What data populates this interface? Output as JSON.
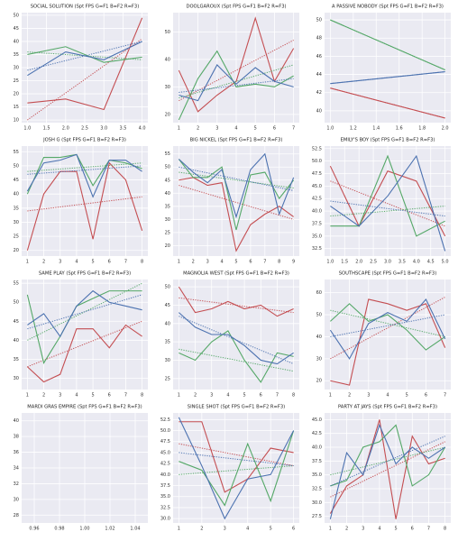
{
  "chart_data": [
    {
      "type": "line",
      "title": "SOCIAL SOLUTION (Spt FPS G=F1 B=F2 R=F3)",
      "grid": true,
      "x": [
        1,
        2,
        3,
        4
      ],
      "xlim": [
        0.85,
        4.15
      ],
      "xticks": [
        {
          "value": 1,
          "label": "1.0"
        },
        {
          "value": 1.5,
          "label": "1.5"
        },
        {
          "value": 2,
          "label": "2.0"
        },
        {
          "value": 2.5,
          "label": "2.5"
        },
        {
          "value": 3,
          "label": "3.0"
        },
        {
          "value": 3.5,
          "label": "3.5"
        },
        {
          "value": 4,
          "label": "4.0"
        }
      ],
      "ylim": [
        9,
        51
      ],
      "yticks": [
        10,
        15,
        20,
        25,
        30,
        35,
        40,
        45,
        50
      ],
      "series": [
        {
          "color": "#c44e52",
          "values": [
            16.5,
            18,
            14,
            49
          ],
          "trend": [
            10,
            41
          ]
        },
        {
          "color": "#55a868",
          "values": [
            35,
            38,
            32,
            34
          ],
          "trend": [
            36,
            33
          ]
        },
        {
          "color": "#4c72b0",
          "values": [
            27,
            36,
            33,
            40
          ],
          "trend": [
            29,
            40
          ]
        }
      ]
    },
    {
      "type": "line",
      "title": "DOOLGAROUX (Spt FPS G=F1 B=F2 R=F3)",
      "grid": true,
      "x": [
        1,
        2,
        3,
        4,
        5,
        6,
        7
      ],
      "xlim": [
        0.7,
        7.3
      ],
      "xticks": [
        1,
        2,
        3,
        4,
        5,
        6,
        7
      ],
      "ylim": [
        17,
        57
      ],
      "yticks": [
        20,
        30,
        40,
        50
      ],
      "series": [
        {
          "color": "#c44e52",
          "values": [
            36,
            21,
            27,
            32,
            55,
            32,
            44
          ],
          "trend": [
            25,
            47
          ]
        },
        {
          "color": "#55a868",
          "values": [
            18,
            33,
            43,
            30,
            31,
            30,
            34
          ],
          "trend": [
            26,
            38
          ]
        },
        {
          "color": "#4c72b0",
          "values": [
            27,
            25,
            38,
            31,
            37,
            32,
            30
          ],
          "trend": [
            28,
            33
          ]
        }
      ]
    },
    {
      "type": "line",
      "title": "A PASSIVE NOBODY (Spt FPS G=F1 B=F2 R=F3)",
      "grid": true,
      "x": [
        1,
        2
      ],
      "xlim": [
        0.95,
        2.05
      ],
      "xticks": [
        {
          "value": 1,
          "label": "1.0"
        },
        {
          "value": 1.2,
          "label": "1.2"
        },
        {
          "value": 1.4,
          "label": "1.4"
        },
        {
          "value": 1.6,
          "label": "1.6"
        },
        {
          "value": 1.8,
          "label": "1.8"
        },
        {
          "value": 2,
          "label": "2.0"
        }
      ],
      "ylim": [
        38.7,
        50.8
      ],
      "yticks": [
        40,
        42,
        44,
        46,
        48,
        50
      ],
      "series": [
        {
          "color": "#c44e52",
          "values": [
            42.5,
            39.2
          ],
          "trend": [
            42.5,
            39.2
          ]
        },
        {
          "color": "#55a868",
          "values": [
            50,
            44.5
          ],
          "trend": [
            50,
            44.5
          ]
        },
        {
          "color": "#4c72b0",
          "values": [
            43,
            44.3
          ],
          "trend": [
            43,
            44.3
          ]
        }
      ]
    },
    {
      "type": "line",
      "title": "JOSH G (Spt FPS G=F1 B=F2 R=F3)",
      "grid": true,
      "x": [
        1,
        2,
        3,
        4,
        5,
        6,
        7,
        8
      ],
      "xlim": [
        0.65,
        8.35
      ],
      "xticks": [
        1,
        2,
        3,
        4,
        5,
        6,
        7,
        8
      ],
      "ylim": [
        18,
        57
      ],
      "yticks": [
        20,
        25,
        30,
        35,
        40,
        45,
        50,
        55
      ],
      "series": [
        {
          "color": "#c44e52",
          "values": [
            20,
            40,
            48,
            48,
            24,
            51,
            45,
            27
          ],
          "trend": [
            34,
            39
          ]
        },
        {
          "color": "#55a868",
          "values": [
            40,
            53,
            53,
            54,
            43,
            52,
            51,
            49
          ],
          "trend": [
            48,
            51
          ]
        },
        {
          "color": "#4c72b0",
          "values": [
            41,
            51,
            52,
            54,
            39,
            52,
            52,
            48
          ],
          "trend": [
            47,
            50
          ]
        }
      ]
    },
    {
      "type": "line",
      "title": "BIG NICKEL (Spt FPS G=F1 B=F2 R=F3)",
      "grid": true,
      "x": [
        1,
        2,
        3,
        4,
        5,
        6,
        7,
        8,
        9
      ],
      "xlim": [
        0.6,
        9.4
      ],
      "xticks": [
        1,
        2,
        3,
        4,
        5,
        6,
        7,
        8,
        9
      ],
      "ylim": [
        16,
        58
      ],
      "yticks": [
        20,
        25,
        30,
        35,
        40,
        45,
        50,
        55
      ],
      "series": [
        {
          "color": "#c44e52",
          "values": [
            45,
            46,
            43,
            44,
            18,
            28,
            32,
            35,
            31
          ],
          "trend": [
            43,
            30
          ]
        },
        {
          "color": "#55a868",
          "values": [
            53,
            46,
            46,
            50,
            26,
            47,
            48,
            38,
            45
          ],
          "trend": [
            48,
            42
          ]
        },
        {
          "color": "#4c72b0",
          "values": [
            53,
            48,
            44,
            49,
            31,
            49,
            55,
            32,
            46
          ],
          "trend": [
            50,
            41
          ]
        }
      ]
    },
    {
      "type": "line",
      "title": "EMILY'S BOY (Spt FPS G=F1 B=F2 R=F3)",
      "grid": true,
      "x": [
        1,
        2,
        3,
        4,
        5
      ],
      "xlim": [
        0.8,
        5.2
      ],
      "xticks": [
        {
          "value": 1,
          "label": "1.0"
        },
        {
          "value": 1.5,
          "label": "1.5"
        },
        {
          "value": 2,
          "label": "2.0"
        },
        {
          "value": 2.5,
          "label": "2.5"
        },
        {
          "value": 3,
          "label": "3.0"
        },
        {
          "value": 3.5,
          "label": "3.5"
        },
        {
          "value": 4,
          "label": "4.0"
        },
        {
          "value": 4.5,
          "label": "4.5"
        },
        {
          "value": 5,
          "label": "5.0"
        }
      ],
      "ylim": [
        31,
        53
      ],
      "yticks": [
        {
          "value": 32.5,
          "label": "32.5"
        },
        {
          "value": 35,
          "label": "35.0"
        },
        {
          "value": 37.5,
          "label": "37.5"
        },
        {
          "value": 40,
          "label": "40.0"
        },
        {
          "value": 42.5,
          "label": "42.5"
        },
        {
          "value": 45,
          "label": "45.0"
        },
        {
          "value": 47.5,
          "label": "47.5"
        },
        {
          "value": 50,
          "label": "50.0"
        },
        {
          "value": 52.5,
          "label": "52.5"
        }
      ],
      "series": [
        {
          "color": "#c44e52",
          "values": [
            49,
            37,
            48,
            46,
            35
          ],
          "trend": [
            46,
            37
          ]
        },
        {
          "color": "#55a868",
          "values": [
            37,
            37,
            51,
            35,
            38
          ],
          "trend": [
            39,
            41
          ]
        },
        {
          "color": "#4c72b0",
          "values": [
            41,
            37,
            43,
            51,
            32
          ],
          "trend": [
            42,
            39
          ]
        }
      ]
    },
    {
      "type": "line",
      "title": "SAME PLAY (Spt FPS G=F1 B=F2 R=F3)",
      "grid": true,
      "x": [
        1,
        2,
        3,
        4,
        5,
        6,
        7,
        8
      ],
      "xlim": [
        0.65,
        8.35
      ],
      "xticks": [
        1,
        2,
        3,
        4,
        5,
        6,
        7,
        8
      ],
      "ylim": [
        27,
        56
      ],
      "yticks": [
        30,
        35,
        40,
        45,
        50,
        55
      ],
      "series": [
        {
          "color": "#c44e52",
          "values": [
            33,
            29,
            31,
            43,
            43,
            38,
            44,
            41
          ],
          "trend": [
            33,
            45
          ]
        },
        {
          "color": "#55a868",
          "values": [
            52,
            34,
            41,
            49,
            51,
            53,
            53,
            53
          ],
          "trend": [
            40,
            55
          ]
        },
        {
          "color": "#4c72b0",
          "values": [
            44,
            47,
            41,
            49,
            53,
            50,
            49,
            48
          ],
          "trend": [
            43,
            52
          ]
        }
      ]
    },
    {
      "type": "line",
      "title": "MAGNOLIA WEST (Spt FPS G=F1 B=F2 R=F3)",
      "grid": true,
      "x": [
        1,
        2,
        3,
        4,
        5,
        6,
        7,
        8
      ],
      "xlim": [
        0.65,
        8.35
      ],
      "xticks": [
        1,
        2,
        3,
        4,
        5,
        6,
        7,
        8
      ],
      "ylim": [
        22,
        52
      ],
      "yticks": [
        25,
        30,
        35,
        40,
        45,
        50
      ],
      "series": [
        {
          "color": "#c44e52",
          "values": [
            50,
            43,
            44,
            46,
            44,
            45,
            42,
            44
          ],
          "trend": [
            47,
            43
          ]
        },
        {
          "color": "#55a868",
          "values": [
            32,
            30,
            35,
            38,
            30,
            24,
            32,
            31
          ],
          "trend": [
            33,
            27
          ]
        },
        {
          "color": "#4c72b0",
          "values": [
            43,
            39,
            37,
            37,
            34,
            30,
            29,
            32
          ],
          "trend": [
            42,
            29
          ]
        }
      ]
    },
    {
      "type": "line",
      "title": "SOUTHSCAPE (Spt FPS G=F1 B=F2 R=F3)",
      "grid": true,
      "x": [
        1,
        2,
        3,
        4,
        5,
        6,
        7
      ],
      "xlim": [
        0.7,
        7.3
      ],
      "xticks": [
        1,
        2,
        3,
        4,
        5,
        6,
        7
      ],
      "ylim": [
        16,
        66
      ],
      "yticks": [
        20,
        30,
        40,
        50,
        60
      ],
      "series": [
        {
          "color": "#c44e52",
          "values": [
            20,
            18,
            57,
            55,
            52,
            55,
            35
          ],
          "trend": [
            30,
            58
          ]
        },
        {
          "color": "#55a868",
          "values": [
            47,
            55,
            47,
            50,
            43,
            34,
            40
          ],
          "trend": [
            52,
            40
          ]
        },
        {
          "color": "#4c72b0",
          "values": [
            43,
            30,
            46,
            51,
            47,
            57,
            39
          ],
          "trend": [
            40,
            50
          ]
        }
      ]
    },
    {
      "type": "line",
      "title": "MARDI GRAS EMPIRE (Spt FPS G=F1 B=F2 R=F3)",
      "grid": true,
      "x": [],
      "xlim": [
        0.95,
        1.05
      ],
      "xticks": [
        0.96,
        0.98,
        {
          "value": 1,
          "label": "1.00"
        },
        1.02,
        1.04
      ],
      "ylim": [
        27,
        41
      ],
      "yticks": [
        28,
        30,
        32,
        34,
        36,
        38,
        40
      ],
      "series": []
    },
    {
      "type": "line",
      "title": "SINGLE SHOT (Spt FPS G=F1 B=F2 R=F3)",
      "grid": true,
      "x": [
        1,
        2,
        3,
        4,
        5,
        6
      ],
      "xlim": [
        0.75,
        6.25
      ],
      "xticks": [
        1,
        2,
        3,
        4,
        5,
        6
      ],
      "ylim": [
        29,
        54
      ],
      "yticks": [
        {
          "value": 30,
          "label": "30.0"
        },
        {
          "value": 32.5,
          "label": "32.5"
        },
        {
          "value": 35,
          "label": "35.0"
        },
        {
          "value": 37.5,
          "label": "37.5"
        },
        {
          "value": 40,
          "label": "40.0"
        },
        {
          "value": 42.5,
          "label": "42.5"
        },
        {
          "value": 45,
          "label": "45.0"
        },
        {
          "value": 47.5,
          "label": "47.5"
        },
        {
          "value": 50,
          "label": "50.0"
        },
        {
          "value": 52.5,
          "label": "52.5"
        }
      ],
      "series": [
        {
          "color": "#c44e52",
          "values": [
            52,
            52,
            36,
            39,
            46,
            45
          ],
          "trend": [
            47,
            42
          ]
        },
        {
          "color": "#55a868",
          "values": [
            43,
            41,
            33,
            47,
            34,
            50
          ],
          "trend": [
            40,
            42
          ]
        },
        {
          "color": "#4c72b0",
          "values": [
            53,
            42,
            30,
            39,
            40,
            50
          ],
          "trend": [
            45,
            42
          ]
        }
      ]
    },
    {
      "type": "line",
      "title": "PARTY AT JAYS (Spt FPS G=F1 B=F2 R=F3)",
      "grid": true,
      "x": [
        1,
        2,
        3,
        4,
        5,
        6,
        7,
        8
      ],
      "xlim": [
        0.65,
        8.35
      ],
      "xticks": [
        1,
        2,
        3,
        4,
        5,
        6,
        7,
        8
      ],
      "ylim": [
        26.3,
        46.2
      ],
      "yticks": [
        {
          "value": 27.5,
          "label": "27.5"
        },
        {
          "value": 30,
          "label": "30.0"
        },
        {
          "value": 32.5,
          "label": "32.5"
        },
        {
          "value": 35,
          "label": "35.0"
        },
        {
          "value": 37.5,
          "label": "37.5"
        },
        {
          "value": 40,
          "label": "40.0"
        },
        {
          "value": 42.5,
          "label": "42.5"
        },
        {
          "value": 45,
          "label": "45.0"
        }
      ],
      "series": [
        {
          "color": "#c44e52",
          "values": [
            28,
            33,
            35,
            45,
            27,
            42,
            37,
            38
          ],
          "trend": [
            31,
            41
          ]
        },
        {
          "color": "#55a868",
          "values": [
            33,
            34,
            40,
            41,
            44,
            33,
            35,
            40
          ],
          "trend": [
            35,
            40
          ]
        },
        {
          "color": "#4c72b0",
          "values": [
            27,
            39,
            35,
            44,
            37,
            40,
            38,
            40
          ],
          "trend": [
            33,
            42
          ]
        }
      ]
    }
  ]
}
